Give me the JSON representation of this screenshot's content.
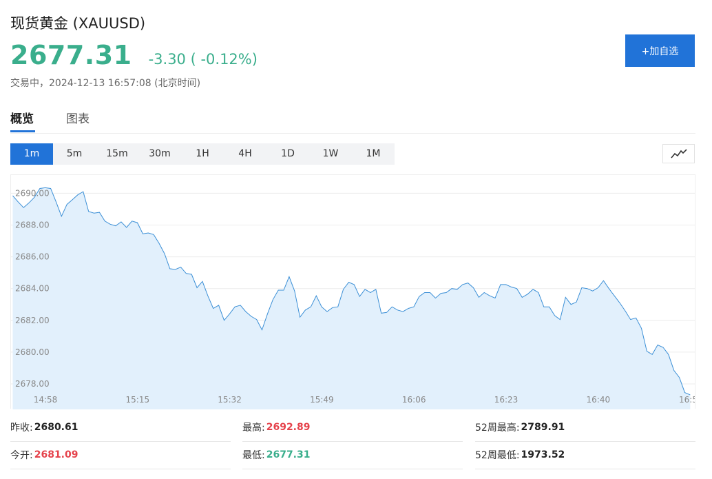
{
  "header": {
    "title": "现货黄金 (XAUUSD)",
    "price": "2677.31",
    "change": "-3.30 ( -0.12%)",
    "status": "交易中，2024-12-13 16:57:08 (北京时间)",
    "add_label": "+加自选"
  },
  "tabs": [
    {
      "label": "概览",
      "active": true
    },
    {
      "label": "图表",
      "active": false
    }
  ],
  "periods": [
    {
      "label": "1m",
      "active": true
    },
    {
      "label": "5m",
      "active": false
    },
    {
      "label": "15m",
      "active": false
    },
    {
      "label": "30m",
      "active": false
    },
    {
      "label": "1H",
      "active": false
    },
    {
      "label": "4H",
      "active": false
    },
    {
      "label": "1D",
      "active": false
    },
    {
      "label": "1W",
      "active": false
    },
    {
      "label": "1M",
      "active": false
    }
  ],
  "chart_type_icon": "line-chart-icon",
  "colors": {
    "accent": "#2173d8",
    "down": "#3aae8c",
    "up": "#e5424b",
    "line": "#3b8fd6",
    "area": "#e2f0fc"
  },
  "stats": [
    {
      "label": "昨收:",
      "value": "2680.61",
      "tone": "neutral"
    },
    {
      "label": "最高:",
      "value": "2692.89",
      "tone": "up"
    },
    {
      "label": "52周最高:",
      "value": "2789.91",
      "tone": "neutral"
    },
    {
      "label": "今开:",
      "value": "2681.09",
      "tone": "up"
    },
    {
      "label": "最低:",
      "value": "2677.31",
      "tone": "down"
    },
    {
      "label": "52周最低:",
      "value": "1973.52",
      "tone": "neutral"
    }
  ],
  "chart_data": {
    "type": "area",
    "title": "",
    "xlabel": "",
    "ylabel": "",
    "ylim": [
      2677.0,
      2690.8
    ],
    "y_ticks": [
      "2690.00",
      "2688.00",
      "2686.00",
      "2684.00",
      "2682.00",
      "2680.00",
      "2678.00"
    ],
    "y_tick_values": [
      2690,
      2688,
      2686,
      2684,
      2682,
      2680,
      2678
    ],
    "x_ticks": [
      "14:58",
      "15:15",
      "15:32",
      "15:49",
      "16:06",
      "16:23",
      "16:40",
      "16:5"
    ],
    "x_tick_minutes": [
      0,
      17,
      34,
      51,
      68,
      85,
      102,
      119
    ],
    "x_range_minutes": [
      0,
      119
    ],
    "grid": "horizontal",
    "series": [
      {
        "values": [
          [
            0,
            2689.85
          ],
          [
            1,
            2689.45
          ],
          [
            2,
            2689.1
          ],
          [
            3,
            2689.4
          ],
          [
            4,
            2689.75
          ],
          [
            5,
            2690.3
          ],
          [
            6,
            2690.35
          ],
          [
            7,
            2690.3
          ],
          [
            8,
            2689.45
          ],
          [
            9,
            2688.55
          ],
          [
            10,
            2689.3
          ],
          [
            11,
            2689.6
          ],
          [
            12,
            2689.9
          ],
          [
            13,
            2690.1
          ],
          [
            14,
            2688.85
          ],
          [
            15,
            2688.75
          ],
          [
            16,
            2688.8
          ],
          [
            17,
            2688.25
          ],
          [
            18,
            2688.05
          ],
          [
            19,
            2687.95
          ],
          [
            20,
            2688.2
          ],
          [
            21,
            2687.85
          ],
          [
            22,
            2688.25
          ],
          [
            23,
            2688.15
          ],
          [
            24,
            2687.45
          ],
          [
            25,
            2687.5
          ],
          [
            26,
            2687.4
          ],
          [
            27,
            2686.85
          ],
          [
            28,
            2686.2
          ],
          [
            29,
            2685.25
          ],
          [
            30,
            2685.2
          ],
          [
            31,
            2685.35
          ],
          [
            32,
            2684.95
          ],
          [
            33,
            2684.9
          ],
          [
            34,
            2684.05
          ],
          [
            35,
            2684.45
          ],
          [
            36,
            2683.55
          ],
          [
            37,
            2682.75
          ],
          [
            38,
            2682.95
          ],
          [
            39,
            2682.0
          ],
          [
            40,
            2682.4
          ],
          [
            41,
            2682.85
          ],
          [
            42,
            2682.95
          ],
          [
            43,
            2682.55
          ],
          [
            44,
            2682.25
          ],
          [
            45,
            2682.05
          ],
          [
            46,
            2681.4
          ],
          [
            47,
            2682.4
          ],
          [
            48,
            2683.3
          ],
          [
            49,
            2683.9
          ],
          [
            50,
            2683.9
          ],
          [
            51,
            2684.75
          ],
          [
            52,
            2683.85
          ],
          [
            53,
            2682.2
          ],
          [
            54,
            2682.65
          ],
          [
            55,
            2682.85
          ],
          [
            56,
            2683.55
          ],
          [
            57,
            2682.85
          ],
          [
            58,
            2682.55
          ],
          [
            59,
            2682.8
          ],
          [
            60,
            2682.85
          ],
          [
            61,
            2683.95
          ],
          [
            62,
            2684.4
          ],
          [
            63,
            2684.25
          ],
          [
            64,
            2683.5
          ],
          [
            65,
            2683.95
          ],
          [
            66,
            2683.75
          ],
          [
            67,
            2683.95
          ],
          [
            68,
            2682.45
          ],
          [
            69,
            2682.5
          ],
          [
            70,
            2682.85
          ],
          [
            71,
            2682.65
          ],
          [
            72,
            2682.55
          ],
          [
            73,
            2682.75
          ],
          [
            74,
            2682.85
          ],
          [
            75,
            2683.5
          ],
          [
            76,
            2683.75
          ],
          [
            77,
            2683.75
          ],
          [
            78,
            2683.4
          ],
          [
            79,
            2683.7
          ],
          [
            80,
            2683.75
          ],
          [
            81,
            2684.0
          ],
          [
            82,
            2683.95
          ],
          [
            83,
            2684.25
          ],
          [
            84,
            2684.35
          ],
          [
            85,
            2684.05
          ],
          [
            86,
            2683.45
          ],
          [
            87,
            2683.75
          ],
          [
            88,
            2683.55
          ],
          [
            89,
            2683.4
          ],
          [
            90,
            2684.25
          ],
          [
            91,
            2684.25
          ],
          [
            92,
            2684.1
          ],
          [
            93,
            2684.0
          ],
          [
            94,
            2683.45
          ],
          [
            95,
            2683.65
          ],
          [
            96,
            2683.95
          ],
          [
            97,
            2683.75
          ],
          [
            98,
            2682.85
          ],
          [
            99,
            2682.85
          ],
          [
            100,
            2682.3
          ],
          [
            101,
            2682.05
          ],
          [
            102,
            2683.45
          ],
          [
            103,
            2683.0
          ],
          [
            104,
            2683.15
          ],
          [
            105,
            2684.05
          ],
          [
            106,
            2684.0
          ],
          [
            107,
            2683.85
          ],
          [
            108,
            2684.05
          ],
          [
            109,
            2684.5
          ],
          [
            110,
            2684.0
          ],
          [
            111,
            2683.55
          ],
          [
            112,
            2683.1
          ],
          [
            113,
            2682.6
          ],
          [
            114,
            2682.05
          ],
          [
            115,
            2682.15
          ],
          [
            116,
            2681.5
          ],
          [
            117,
            2680.05
          ],
          [
            118,
            2679.85
          ],
          [
            119,
            2680.45
          ],
          [
            120,
            2680.3
          ],
          [
            121,
            2679.85
          ],
          [
            122,
            2678.85
          ],
          [
            123,
            2678.4
          ],
          [
            124,
            2677.45
          ],
          [
            125,
            2677.31
          ]
        ]
      }
    ]
  }
}
